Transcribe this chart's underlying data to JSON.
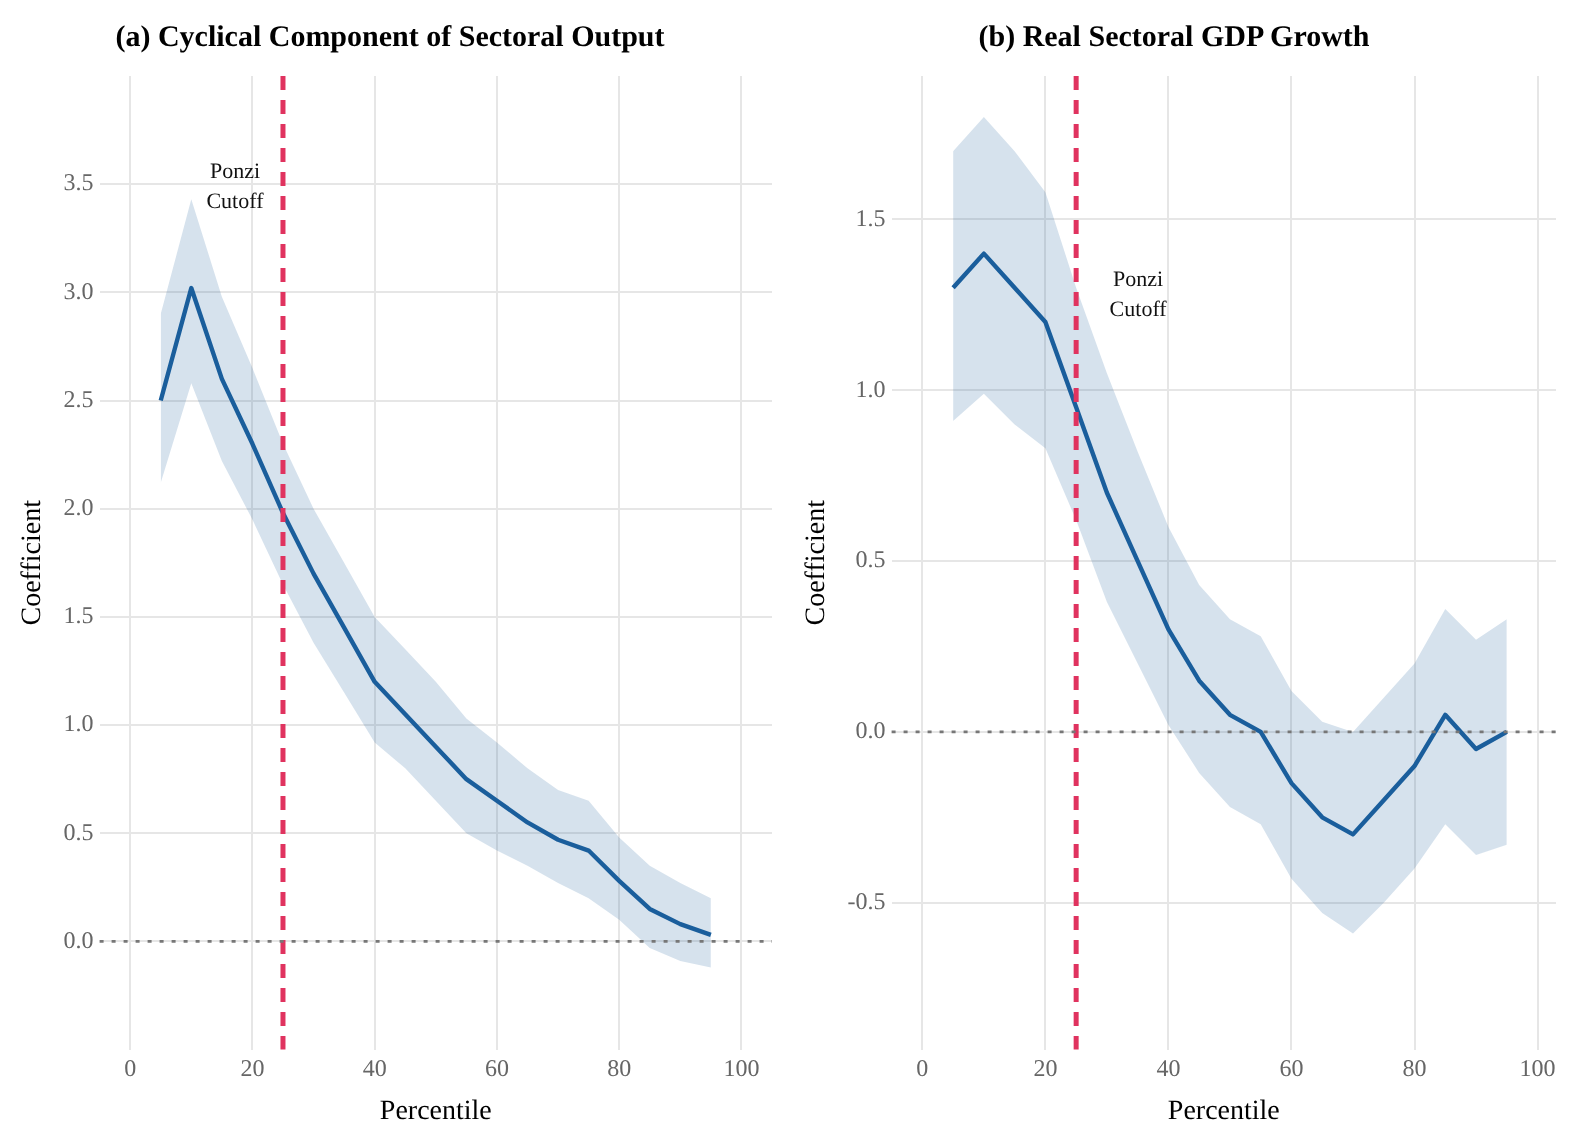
{
  "chart_data": [
    {
      "type": "line",
      "title": "(a) Cyclical Component of Sectoral Output",
      "xlabel": "Percentile",
      "ylabel": "Coefficient",
      "x": [
        5,
        10,
        15,
        20,
        25,
        30,
        35,
        40,
        45,
        50,
        55,
        60,
        65,
        70,
        75,
        80,
        85,
        90,
        95
      ],
      "series": [
        {
          "color": "#1a5e9c",
          "values": [
            2.5,
            3.02,
            2.6,
            2.3,
            1.98,
            1.7,
            1.45,
            1.2,
            1.05,
            0.9,
            0.75,
            0.65,
            0.55,
            0.47,
            0.42,
            0.28,
            0.15,
            0.08,
            0.03
          ],
          "lower": [
            2.12,
            2.58,
            2.22,
            1.95,
            1.65,
            1.38,
            1.15,
            0.92,
            0.8,
            0.65,
            0.5,
            0.42,
            0.35,
            0.27,
            0.2,
            0.1,
            -0.03,
            -0.09,
            -0.12
          ],
          "upper": [
            2.9,
            3.43,
            2.98,
            2.65,
            2.3,
            2.0,
            1.75,
            1.5,
            1.35,
            1.2,
            1.03,
            0.92,
            0.8,
            0.7,
            0.65,
            0.48,
            0.35,
            0.27,
            0.2
          ]
        }
      ],
      "xlim": [
        -5,
        105
      ],
      "xticks": [
        0,
        20,
        40,
        60,
        80,
        100
      ],
      "ylim": [
        -0.5,
        4.0
      ],
      "yticks": [
        "0.0",
        0.5,
        "1.0",
        1.5,
        "2.0",
        2.5,
        "3.0",
        3.5
      ],
      "ref_lines": [
        {
          "axis": "x",
          "value": 25,
          "color": "#e0335f",
          "line_style": "dashed",
          "label": "Ponzi Cutoff"
        },
        {
          "axis": "y",
          "value": 0,
          "color": "#777777",
          "line_style": "dotted"
        }
      ],
      "grid": true,
      "legend": false,
      "marker": "none",
      "line_style": "solid"
    },
    {
      "type": "line",
      "title": "(b) Real Sectoral GDP Growth",
      "xlabel": "Percentile",
      "ylabel": "Coefficient",
      "x": [
        5,
        10,
        15,
        20,
        25,
        30,
        35,
        40,
        45,
        50,
        55,
        60,
        65,
        70,
        75,
        80,
        85,
        90,
        95
      ],
      "series": [
        {
          "color": "#1a5e9c",
          "values": [
            1.3,
            1.4,
            1.3,
            1.2,
            0.95,
            0.7,
            0.5,
            0.3,
            0.15,
            0.05,
            0,
            -0.15,
            -0.25,
            -0.3,
            -0.2,
            -0.1,
            0.05,
            -0.05,
            0
          ],
          "lower": [
            0.91,
            0.99,
            0.9,
            0.83,
            0.62,
            0.38,
            0.2,
            0.02,
            -0.12,
            -0.22,
            -0.27,
            -0.43,
            -0.53,
            -0.59,
            -0.5,
            -0.4,
            -0.27,
            -0.36,
            -0.33
          ],
          "upper": [
            1.7,
            1.8,
            1.7,
            1.58,
            1.3,
            1.05,
            0.82,
            0.6,
            0.43,
            0.33,
            0.28,
            0.12,
            0.03,
            0,
            0.1,
            0.2,
            0.36,
            0.27,
            0.33
          ]
        }
      ],
      "xlim": [
        -5,
        103
      ],
      "xticks": [
        0,
        20,
        40,
        60,
        80,
        100
      ],
      "ylim": [
        -0.93,
        1.92
      ],
      "yticks": [
        -0.5,
        "0.0",
        0.5,
        "1.0",
        1.5
      ],
      "ref_lines": [
        {
          "axis": "x",
          "value": 25,
          "color": "#e0335f",
          "line_style": "dashed",
          "label": "Ponzi Cutoff"
        },
        {
          "axis": "y",
          "value": 0,
          "color": "#777777",
          "line_style": "dotted"
        }
      ],
      "grid": true,
      "legend": false,
      "marker": "none",
      "line_style": "solid"
    }
  ]
}
